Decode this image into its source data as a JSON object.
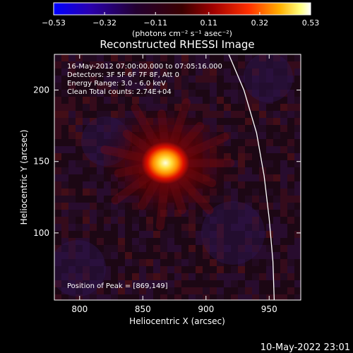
{
  "chart_data": {
    "type": "heatmap",
    "title": "Reconstructed RHESSI Image",
    "colorbar": {
      "unit_label": "(photons cm⁻² s⁻¹ asec⁻²)",
      "ticks": [
        "-0.53",
        "-0.32",
        "-0.11",
        "0.11",
        "0.32",
        "0.53"
      ],
      "range": [
        -0.53,
        0.53
      ],
      "colormap": [
        "#0000ff",
        "#2a00b0",
        "#230030",
        "#7a0000",
        "#ff1a00",
        "#ffb000",
        "#ffff90",
        "#ffffff"
      ]
    },
    "xlabel": "Heliocentric X (arcsec)",
    "ylabel": "Heliocentric Y (arcsec)",
    "xlim": [
      780,
      975
    ],
    "ylim": [
      53,
      225
    ],
    "xticks": [
      800,
      850,
      900,
      950
    ],
    "yticks": [
      100,
      150,
      200
    ],
    "annotations": [
      "16-May-2012 07:00:00.000 to 07:05:16.000",
      "Detectors: 3F 5F 6F 7F 8F, Att 0",
      "Energy Range: 3.0 - 6.0 keV",
      "Clean    Total counts: 2.74E+04"
    ],
    "peak_label": "Position of Peak = [869,149]",
    "peak": {
      "x": 869,
      "y": 149,
      "value": 0.53
    },
    "limb_curve": [
      [
        918,
        225
      ],
      [
        930,
        200
      ],
      [
        940,
        170
      ],
      [
        946,
        140
      ],
      [
        950,
        110
      ],
      [
        953,
        80
      ],
      [
        954,
        53
      ]
    ],
    "timestamp": "10-May-2022 23:01"
  }
}
